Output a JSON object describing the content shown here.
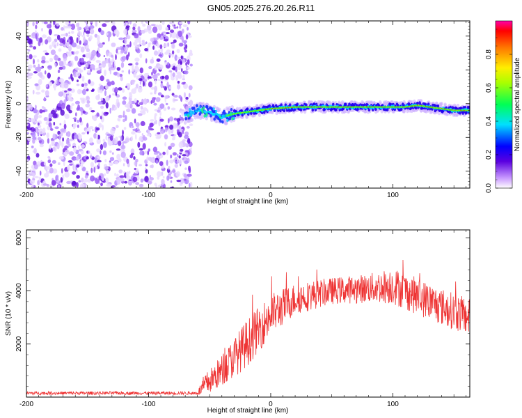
{
  "title": "GN05.2025.276.20.26.R11",
  "chart_data": [
    {
      "type": "heatmap",
      "xlabel": "Height of straight line (km)",
      "ylabel": "Frequency (Hz)",
      "xlim": [
        -200,
        163
      ],
      "ylim": [
        -50,
        49
      ],
      "xticks": [
        -200,
        -100,
        0,
        100
      ],
      "yticks": [
        -40,
        -20,
        0,
        20,
        40
      ],
      "noise_region": {
        "x_start": -200,
        "x_end": -65,
        "description_only": false
      },
      "ridge": {
        "x": [
          -70,
          -60,
          -50,
          -40,
          -30,
          -20,
          -10,
          0,
          20,
          40,
          60,
          80,
          100,
          110,
          120,
          130,
          140,
          150,
          163
        ],
        "freq": [
          -7,
          -4,
          -5,
          -8,
          -6,
          -5,
          -4,
          -3,
          -2,
          -2,
          -2,
          -2,
          -2,
          -2,
          -1,
          -2,
          -3,
          -4,
          -4
        ]
      },
      "colorbar": {
        "label": "Normalized spectral amplitude",
        "range": [
          0,
          1
        ],
        "ticks": [
          "0.0",
          "0.2",
          "0.4",
          "0.6",
          "0.8"
        ]
      }
    },
    {
      "type": "line",
      "xlabel": "Height of straight line (km)",
      "ylabel": "SNR (10 * v/v)",
      "xlim": [
        -200,
        163
      ],
      "ylim": [
        0,
        6300
      ],
      "xticks": [
        -200,
        -100,
        0,
        100
      ],
      "yticks": [
        2000,
        4000,
        6000
      ],
      "color": "#ee3333",
      "envelope_x": [
        -200,
        -60,
        -55,
        -40,
        -20,
        0,
        20,
        50,
        80,
        100,
        120,
        140,
        163
      ],
      "envelope_y": [
        150,
        150,
        400,
        1000,
        2000,
        3100,
        3700,
        4000,
        4100,
        4200,
        3800,
        3400,
        3000
      ],
      "noise_amplitude": [
        60,
        60,
        400,
        600,
        900,
        800,
        600,
        500,
        550,
        700,
        700,
        700,
        700
      ]
    }
  ]
}
